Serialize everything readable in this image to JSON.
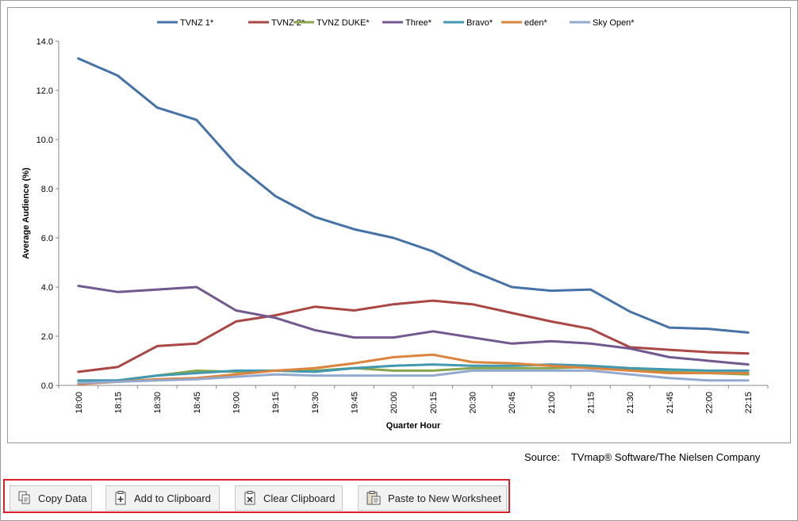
{
  "chart_data": {
    "type": "line",
    "title": "",
    "xlabel": "Quarter Hour",
    "ylabel": "Average Audience (%)",
    "ylim": [
      0,
      14
    ],
    "yticks": [
      "0.0",
      "2.0",
      "4.0",
      "6.0",
      "8.0",
      "10.0",
      "12.0",
      "14.0"
    ],
    "grid": false,
    "legend_position": "top",
    "categories": [
      "18:00",
      "18:15",
      "18:30",
      "18:45",
      "19:00",
      "19:15",
      "19:30",
      "19:45",
      "20:00",
      "20:15",
      "20:30",
      "20:45",
      "21:00",
      "21:15",
      "21:30",
      "21:45",
      "22:00",
      "22:15"
    ],
    "series": [
      {
        "name": "TVNZ 1*",
        "color": "#4572a7",
        "values": [
          13.3,
          12.6,
          11.3,
          10.8,
          9.0,
          7.7,
          6.85,
          6.35,
          6.0,
          5.45,
          4.65,
          4.0,
          3.85,
          3.9,
          3.0,
          2.35,
          2.3,
          2.15
        ]
      },
      {
        "name": "TVNZ 2*",
        "color": "#aa4643",
        "values": [
          0.55,
          0.75,
          1.6,
          1.7,
          2.6,
          2.85,
          3.2,
          3.05,
          3.3,
          3.45,
          3.3,
          2.95,
          2.6,
          2.3,
          1.55,
          1.45,
          1.35,
          1.3
        ]
      },
      {
        "name": "TVNZ DUKE*",
        "color": "#89a54e",
        "values": [
          0.1,
          0.2,
          0.4,
          0.6,
          0.55,
          0.6,
          0.6,
          0.7,
          0.6,
          0.6,
          0.7,
          0.7,
          0.7,
          0.75,
          0.65,
          0.55,
          0.5,
          0.45
        ]
      },
      {
        "name": "Three*",
        "color": "#71588f",
        "values": [
          4.05,
          3.8,
          3.9,
          4.0,
          3.05,
          2.75,
          2.25,
          1.95,
          1.95,
          2.2,
          1.95,
          1.7,
          1.8,
          1.7,
          1.5,
          1.15,
          1.0,
          0.85
        ]
      },
      {
        "name": "Bravo*",
        "color": "#4198af",
        "values": [
          0.2,
          0.2,
          0.4,
          0.5,
          0.6,
          0.6,
          0.55,
          0.7,
          0.8,
          0.85,
          0.8,
          0.8,
          0.85,
          0.8,
          0.7,
          0.65,
          0.6,
          0.6
        ]
      },
      {
        "name": "eden*",
        "color": "#db843d",
        "values": [
          0.05,
          0.15,
          0.25,
          0.3,
          0.45,
          0.6,
          0.7,
          0.9,
          1.15,
          1.25,
          0.95,
          0.9,
          0.8,
          0.7,
          0.6,
          0.5,
          0.5,
          0.5
        ]
      },
      {
        "name": "Sky Open*",
        "color": "#93a9cf",
        "values": [
          0.1,
          0.15,
          0.2,
          0.25,
          0.35,
          0.45,
          0.4,
          0.4,
          0.4,
          0.4,
          0.6,
          0.6,
          0.6,
          0.6,
          0.45,
          0.3,
          0.2,
          0.2
        ]
      }
    ]
  },
  "source": {
    "label": "Source:",
    "text": "TVmap® Software/The Nielsen Company"
  },
  "toolbar": {
    "copy_data": "Copy Data",
    "add_to_clipboard": "Add to Clipboard",
    "clear_clipboard": "Clear Clipboard",
    "paste_to_new_worksheet": "Paste to New Worksheet"
  },
  "icons": {
    "copy_data": "copy-icon",
    "add_to_clipboard": "clipboard-add-icon",
    "clear_clipboard": "clipboard-clear-icon",
    "paste_to_new_worksheet": "paste-icon"
  }
}
